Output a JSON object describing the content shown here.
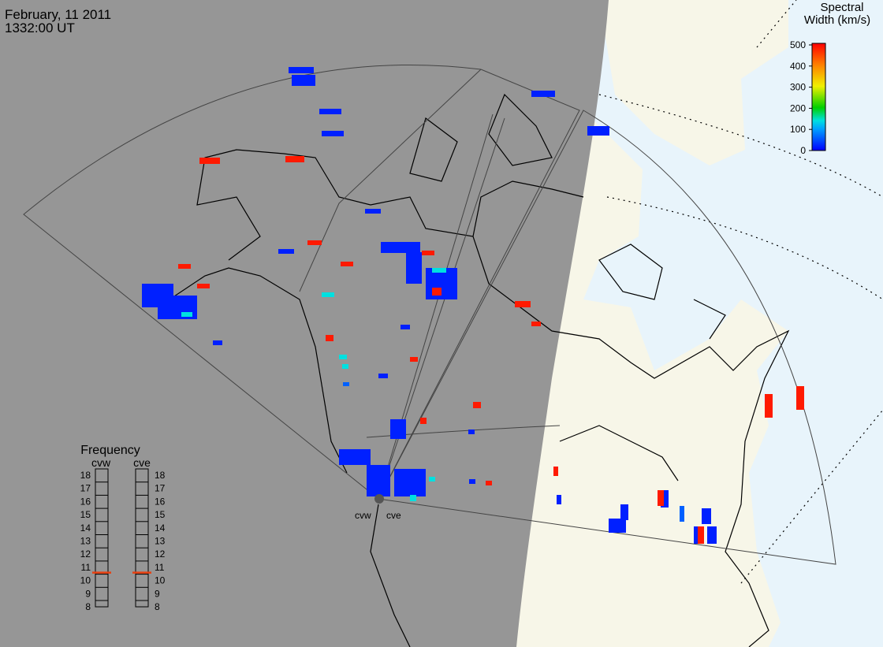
{
  "header": {
    "date": "February, 11 2011",
    "time": "1332:00 UT"
  },
  "colorbar": {
    "title_lines": [
      "Spectral",
      "Width (km/s)"
    ],
    "lim": [
      0,
      500
    ],
    "ticks": [
      0,
      100,
      200,
      300,
      400,
      500
    ]
  },
  "frequency": {
    "title": "Frequency",
    "lim": [
      8,
      18
    ],
    "ticks": [
      8,
      9,
      10,
      11,
      12,
      13,
      14,
      15,
      16,
      17,
      18
    ],
    "radars": [
      {
        "name": "cvw",
        "value": 10.6
      },
      {
        "name": "cve",
        "value": 10.6
      }
    ]
  },
  "cells": {
    "values": [
      20,
      20,
      20,
      20,
      20,
      20,
      20,
      20,
      20,
      20,
      20,
      20,
      20,
      20,
      20,
      20,
      20,
      20,
      20,
      20,
      20,
      20,
      20,
      20,
      20,
      20,
      20,
      20,
      20,
      480,
      480,
      480,
      480,
      480,
      480,
      480,
      480,
      480,
      480,
      480,
      480,
      480,
      480,
      480,
      480,
      480,
      480,
      480,
      480,
      140,
      140,
      140,
      140,
      140,
      140,
      140,
      60,
      60
    ]
  }
}
